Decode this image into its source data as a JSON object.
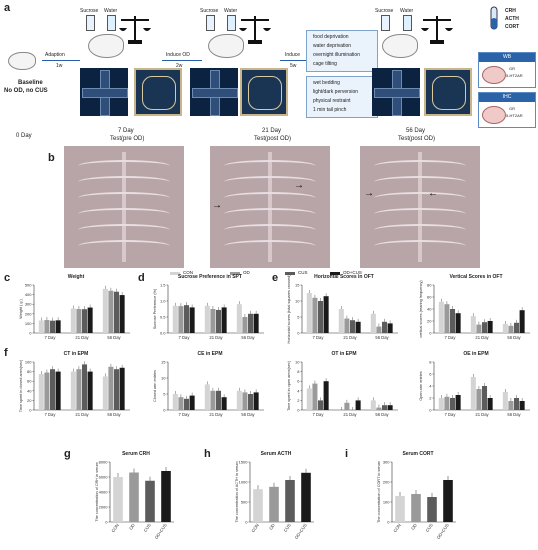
{
  "panel_letters": {
    "a": "a",
    "b": "b",
    "c": "c",
    "d": "d",
    "e": "e",
    "f": "f",
    "g": "g",
    "h": "h",
    "i": "i"
  },
  "schematic": {
    "baseline": "Baseline",
    "baseline_note": "No OD, no CUS",
    "adaption": "Adaption",
    "week1": "1w",
    "induce_od_1": "Induce OD",
    "week2": "2w",
    "induce": "Induce",
    "week5": "5w",
    "sucrose": "Sucrose",
    "water": "Water",
    "stressors_top": [
      "food deprivation",
      "water deprivation",
      "overnight illumination",
      "cage tilting"
    ],
    "stressors_bottom": [
      "wet bedding",
      "light/dark perversion",
      "physical restraint",
      "1 min tail pinch"
    ],
    "assays": [
      "CRH",
      "ACTH",
      "CORT"
    ],
    "wb": "WB",
    "ihc": "IHC",
    "wb_markers": [
      "GR",
      "5-HT2AR"
    ],
    "ihc_markers": [
      "GR",
      "5-HT2AR"
    ]
  },
  "timeline": {
    "day0": "0 Day",
    "day7": "7 Day",
    "day7_sub": "Test(pre OD)",
    "day21": "21 Day",
    "day21_sub": "Test(post OD)",
    "day56": "56 Day",
    "day56_sub": "Test(post OD)"
  },
  "legend": [
    "CON",
    "OD",
    "CUS",
    "OD+CUS"
  ],
  "colors": {
    "CON": "#d4d4d4",
    "OD": "#9a9a9a",
    "CUS": "#5c5c5c",
    "OD+CUS": "#1a1a1a",
    "accent": "#2b63a8",
    "star": "#e53030"
  },
  "chart_data": [
    {
      "id": "c",
      "type": "bar",
      "title": "Weight",
      "ylabel": "Weight ( g )",
      "categories": [
        "7 Day",
        "21 Day",
        "56 Day"
      ],
      "ylim": [
        0,
        500
      ],
      "yticks": [
        "0",
        "100",
        "200",
        "300",
        "400",
        "500"
      ],
      "series": [
        {
          "name": "CON",
          "values": [
            130,
            255,
            460
          ]
        },
        {
          "name": "OD",
          "values": [
            135,
            250,
            440
          ]
        },
        {
          "name": "CUS",
          "values": [
            128,
            248,
            430
          ]
        },
        {
          "name": "OD+CUS",
          "values": [
            132,
            265,
            395
          ]
        }
      ]
    },
    {
      "id": "d",
      "type": "bar",
      "title": "Sucrose Preference in SPT",
      "ylabel": "Sucrose Preference (%)",
      "categories": [
        "7 Day",
        "21 Day",
        "56 Day"
      ],
      "ylim": [
        0,
        1.5
      ],
      "yticks": [
        "0.0",
        "0.5",
        "1.0",
        "1.5"
      ],
      "series": [
        {
          "name": "CON",
          "values": [
            0.85,
            0.85,
            0.9
          ]
        },
        {
          "name": "OD",
          "values": [
            0.84,
            0.75,
            0.5
          ]
        },
        {
          "name": "CUS",
          "values": [
            0.87,
            0.72,
            0.6
          ]
        },
        {
          "name": "OD+CUS",
          "values": [
            0.8,
            0.8,
            0.6
          ]
        }
      ]
    },
    {
      "id": "e1",
      "type": "bar",
      "title": "Horizontal Scores in OFT",
      "ylabel": "Horizontal scores (total squares crossed)",
      "categories": [
        "7 Day",
        "21 Day",
        "56 Day"
      ],
      "ylim": [
        0,
        15
      ],
      "yticks": [
        "0",
        "5",
        "10",
        "15"
      ],
      "series": [
        {
          "name": "CON",
          "values": [
            12.5,
            7.5,
            6
          ]
        },
        {
          "name": "OD",
          "values": [
            11,
            4.5,
            2
          ]
        },
        {
          "name": "CUS",
          "values": [
            10,
            4,
            3.5
          ]
        },
        {
          "name": "OD+CUS",
          "values": [
            11.5,
            3.5,
            3
          ]
        }
      ]
    },
    {
      "id": "e2",
      "type": "bar",
      "title": "Vertical Scores in OFT",
      "ylabel": "vertical scores (rearing frequency)",
      "categories": [
        "7 Day",
        "21 Day",
        "56 Day"
      ],
      "ylim": [
        0,
        80
      ],
      "yticks": [
        "0",
        "20",
        "40",
        "60",
        "80"
      ],
      "series": [
        {
          "name": "CON",
          "values": [
            52,
            28,
            15
          ]
        },
        {
          "name": "OD",
          "values": [
            48,
            14,
            12
          ]
        },
        {
          "name": "CUS",
          "values": [
            40,
            18,
            17
          ]
        },
        {
          "name": "OD+CUS",
          "values": [
            33,
            20,
            38
          ]
        }
      ]
    },
    {
      "id": "f1",
      "type": "bar",
      "title": "CT in EPM",
      "ylabel": "Time spent in closed arms(sec)",
      "categories": [
        "7 Day",
        "21 Day",
        "56 Day"
      ],
      "ylim": [
        0,
        100
      ],
      "yticks": [
        "0",
        "20",
        "40",
        "60",
        "80",
        "100"
      ],
      "series": [
        {
          "name": "CON",
          "values": [
            75,
            80,
            70
          ]
        },
        {
          "name": "OD",
          "values": [
            78,
            85,
            90
          ]
        },
        {
          "name": "CUS",
          "values": [
            85,
            95,
            85
          ]
        },
        {
          "name": "OD+CUS",
          "values": [
            80,
            80,
            88
          ]
        }
      ]
    },
    {
      "id": "f2",
      "type": "bar",
      "title": "CE in EPM",
      "ylabel": "Closed arm entries",
      "categories": [
        "7 Day",
        "21 Day",
        "56 Day"
      ],
      "ylim": [
        0,
        15
      ],
      "yticks": [
        "0",
        "5",
        "10",
        "15"
      ],
      "series": [
        {
          "name": "CON",
          "values": [
            5,
            8,
            6
          ]
        },
        {
          "name": "OD",
          "values": [
            4,
            6,
            5.5
          ]
        },
        {
          "name": "CUS",
          "values": [
            3.5,
            6,
            5
          ]
        },
        {
          "name": "OD+CUS",
          "values": [
            4.5,
            4,
            5.5
          ]
        }
      ]
    },
    {
      "id": "f3",
      "type": "bar",
      "title": "OT in EPM",
      "ylabel": "Time spent in open arms(sec)",
      "categories": [
        "7 Day",
        "21 Day",
        "56 Day"
      ],
      "ylim": [
        0,
        10
      ],
      "yticks": [
        "0",
        "2",
        "4",
        "6",
        "8",
        "10"
      ],
      "series": [
        {
          "name": "CON",
          "values": [
            4.5,
            0,
            2
          ]
        },
        {
          "name": "OD",
          "values": [
            5.5,
            1.5,
            0.5
          ]
        },
        {
          "name": "CUS",
          "values": [
            2,
            0,
            1
          ]
        },
        {
          "name": "OD+CUS",
          "values": [
            6,
            2,
            1
          ]
        }
      ]
    },
    {
      "id": "f4",
      "type": "bar",
      "title": "OE in EPM",
      "ylabel": "Open arm entries",
      "categories": [
        "7 Day",
        "21 Day",
        "56 Day"
      ],
      "ylim": [
        0,
        8
      ],
      "yticks": [
        "0",
        "2",
        "4",
        "6",
        "8"
      ],
      "series": [
        {
          "name": "CON",
          "values": [
            2,
            5.5,
            3
          ]
        },
        {
          "name": "OD",
          "values": [
            2.2,
            3.5,
            1.5
          ]
        },
        {
          "name": "CUS",
          "values": [
            2,
            4,
            2
          ]
        },
        {
          "name": "OD+CUS",
          "values": [
            2.5,
            2,
            1.5
          ]
        }
      ]
    },
    {
      "id": "g",
      "type": "bar",
      "title": "Serum CRH",
      "ylabel": "The concentration of CRH in serum",
      "categories": [
        "CON",
        "OD",
        "CUS",
        "OD+CUS"
      ],
      "ylim": [
        0,
        8000
      ],
      "yticks": [
        "0",
        "2000",
        "4000",
        "6000",
        "8000"
      ],
      "series": [
        {
          "name": "value",
          "values": [
            6000,
            6600,
            5500,
            6800
          ]
        }
      ]
    },
    {
      "id": "h",
      "type": "bar",
      "title": "Serum ACTH",
      "ylabel": "The concentration of ACTH in serum",
      "categories": [
        "CON",
        "OD",
        "CUS",
        "OD+CUS"
      ],
      "ylim": [
        0,
        1500
      ],
      "yticks": [
        "0",
        "500",
        "1000",
        "1500"
      ],
      "series": [
        {
          "name": "value",
          "values": [
            820,
            880,
            1050,
            1230
          ]
        }
      ]
    },
    {
      "id": "i",
      "type": "bar",
      "title": "Serum CORT",
      "ylabel": "The concentration of CORT in serum",
      "categories": [
        "CON",
        "OD",
        "CUS",
        "OD+CUS"
      ],
      "ylim": [
        0,
        300
      ],
      "yticks": [
        "0",
        "100",
        "200",
        "300"
      ],
      "series": [
        {
          "name": "value",
          "values": [
            130,
            140,
            125,
            210
          ]
        }
      ]
    }
  ]
}
